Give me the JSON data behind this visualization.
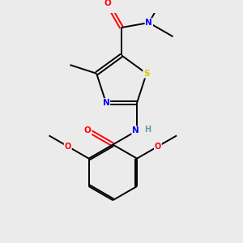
{
  "background_color": "#ebebeb",
  "bond_color": "#000000",
  "colors": {
    "O": "#ff0000",
    "N": "#0000ff",
    "S": "#cccc00",
    "H": "#6699aa",
    "C": "#000000"
  },
  "lw": 1.4
}
